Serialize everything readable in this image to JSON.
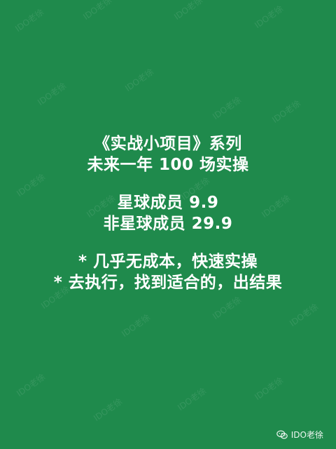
{
  "colors": {
    "background": "#1f8a4c",
    "text": "#ffffff"
  },
  "watermark": {
    "text": "IDO老徐"
  },
  "content": {
    "lines": [
      "《实战小项目》系列",
      "未来一年 100 场实操",
      "",
      "星球成员 9.9",
      "非星球成员 29.9",
      "",
      "* 几乎无成本，快速实操",
      "* 去执行，找到适合的，出结果"
    ]
  },
  "footer": {
    "icon": "wechat-icon",
    "label": "IDO老徐"
  }
}
